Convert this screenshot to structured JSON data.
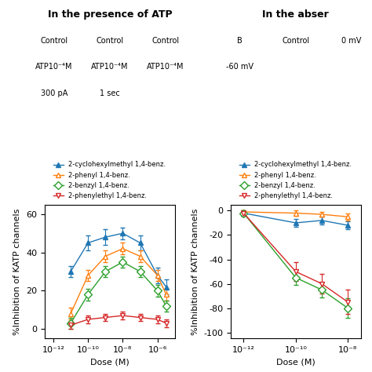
{
  "chart_data": [
    {
      "type": "scatter",
      "title": "In the presence of ATP",
      "xlabel": "Dose (M)",
      "ylabel": "%Inhibition of KATP channels",
      "x": [
        -11,
        -10,
        -9,
        -8,
        -7,
        -6,
        -5.5
      ],
      "xlim": [
        -12.5,
        -5
      ],
      "xticks": [
        {
          "value": -12,
          "label": "10⁻¹²"
        },
        {
          "value": -10,
          "label": "10⁻¹⁰"
        },
        {
          "value": -8,
          "label": "10⁻⁸"
        },
        {
          "value": -6,
          "label": "10⁻⁶"
        }
      ],
      "ylim": [
        -5,
        65
      ],
      "yticks": [
        0,
        20,
        40,
        60
      ],
      "legend": "upper center",
      "annotations": [
        "Control",
        "Control",
        "Control",
        "ATP10⁻⁴M",
        "ATP10⁻⁴M",
        "ATP10⁻⁴M",
        "300 pA",
        "1 sec"
      ],
      "series": [
        {
          "name": "2-cyclohexylmethyl 1,4-benz.",
          "marker": "filled_triangle_up",
          "line_style": "solid",
          "values": [
            30,
            45,
            48,
            50,
            45,
            28,
            22
          ],
          "yerr": [
            3,
            4,
            4,
            3,
            4,
            4,
            4
          ]
        },
        {
          "name": "2-phenyl 1,4-benz.",
          "marker": "open_triangle_up",
          "line_style": "solid",
          "values": [
            8,
            28,
            38,
            42,
            38,
            28,
            18
          ],
          "yerr": [
            3,
            3,
            3,
            3,
            3,
            3,
            3
          ]
        },
        {
          "name": "2-benzyl 1,4-benz.",
          "marker": "open_diamond",
          "line_style": "solid",
          "values": [
            3,
            18,
            30,
            35,
            30,
            20,
            12
          ],
          "yerr": [
            3,
            3,
            3,
            3,
            3,
            3,
            3
          ]
        },
        {
          "name": "2-phenylethyl 1,4-benz.",
          "marker": "open_triangle_down",
          "line_style": "solid",
          "values": [
            2,
            5,
            6,
            7,
            6,
            5,
            3
          ],
          "yerr": [
            2,
            2,
            2,
            2,
            2,
            2,
            2
          ]
        }
      ]
    },
    {
      "type": "scatter",
      "title": "In the abser",
      "xlabel": "Dose (M)",
      "ylabel": "%Inhibition of KATP channels",
      "x": [
        -12,
        -10,
        -9,
        -8
      ],
      "xlim": [
        -12.5,
        -7.5
      ],
      "xticks": [
        {
          "value": -12,
          "label": "10⁻¹²"
        },
        {
          "value": -10,
          "label": "10⁻¹⁰"
        },
        {
          "value": -8,
          "label": "10⁻⁸"
        }
      ],
      "ylim": [
        -105,
        5
      ],
      "yticks": [
        0,
        -20,
        -40,
        -60,
        -80,
        -100
      ],
      "legend": "upper center",
      "annotations": [
        "B",
        "Control",
        "0 mV",
        "-60 mV"
      ],
      "series": [
        {
          "name": "2-cyclohexylmethyl 1,4-benz.",
          "marker": "filled_triangle_up",
          "line_style": "solid",
          "values": [
            -2,
            -10,
            -8,
            -12
          ],
          "yerr": [
            1,
            3,
            3,
            3
          ]
        },
        {
          "name": "2-phenyl 1,4-benz.",
          "marker": "open_triangle_up",
          "line_style": "solid",
          "values": [
            -1,
            -2,
            -3,
            -5
          ],
          "yerr": [
            1,
            2,
            2,
            3
          ]
        },
        {
          "name": "2-benzyl 1,4-benz.",
          "marker": "open_diamond",
          "line_style": "solid",
          "values": [
            -2,
            -55,
            -65,
            -80
          ],
          "yerr": [
            2,
            6,
            6,
            8
          ]
        },
        {
          "name": "2-phenylethyl 1,4-benz.",
          "marker": "open_triangle_down",
          "line_style": "solid",
          "values": [
            -2,
            -50,
            -60,
            -75
          ],
          "yerr": [
            2,
            8,
            8,
            10
          ]
        }
      ]
    }
  ]
}
